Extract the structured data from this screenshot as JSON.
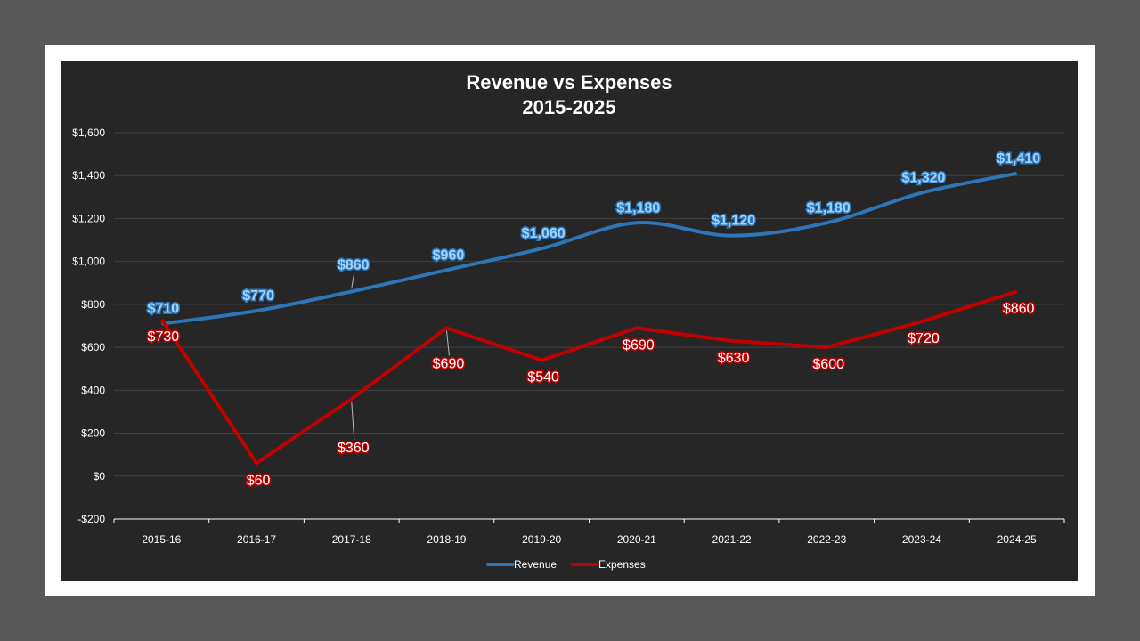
{
  "chart_data": {
    "type": "line",
    "title": "Revenue vs Expenses",
    "subtitle": "2015-2025",
    "categories": [
      "2015-16",
      "2016-17",
      "2017-18",
      "2018-19",
      "2019-20",
      "2020-21",
      "2021-22",
      "2022-23",
      "2023-24",
      "2024-25"
    ],
    "series": [
      {
        "name": "Revenue",
        "color": "#2e75b6",
        "smooth": true,
        "values": [
          710,
          770,
          860,
          960,
          1060,
          1180,
          1120,
          1180,
          1320,
          1410
        ],
        "labels": [
          "$710",
          "$770",
          "$860",
          "$960",
          "$1,060",
          "$1,180",
          "$1,120",
          "$1,180",
          "$1,320",
          "$1,410"
        ]
      },
      {
        "name": "Expenses",
        "color": "#c00000",
        "smooth": false,
        "values": [
          730,
          60,
          360,
          690,
          540,
          690,
          630,
          600,
          720,
          860
        ],
        "labels": [
          "$730",
          "$60",
          "$360",
          "$690",
          "$540",
          "$690",
          "$630",
          "$600",
          "$720",
          "$860"
        ]
      }
    ],
    "ylim": [
      -200,
      1600
    ],
    "yticks": [
      -200,
      0,
      200,
      400,
      600,
      800,
      1000,
      1200,
      1400,
      1600
    ],
    "ytick_labels": [
      "-$200",
      "$0",
      "$200",
      "$400",
      "$600",
      "$800",
      "$1,000",
      "$1,200",
      "$1,400",
      "$1,600"
    ],
    "grid": true,
    "legend": "bottom",
    "background": "#262626"
  }
}
